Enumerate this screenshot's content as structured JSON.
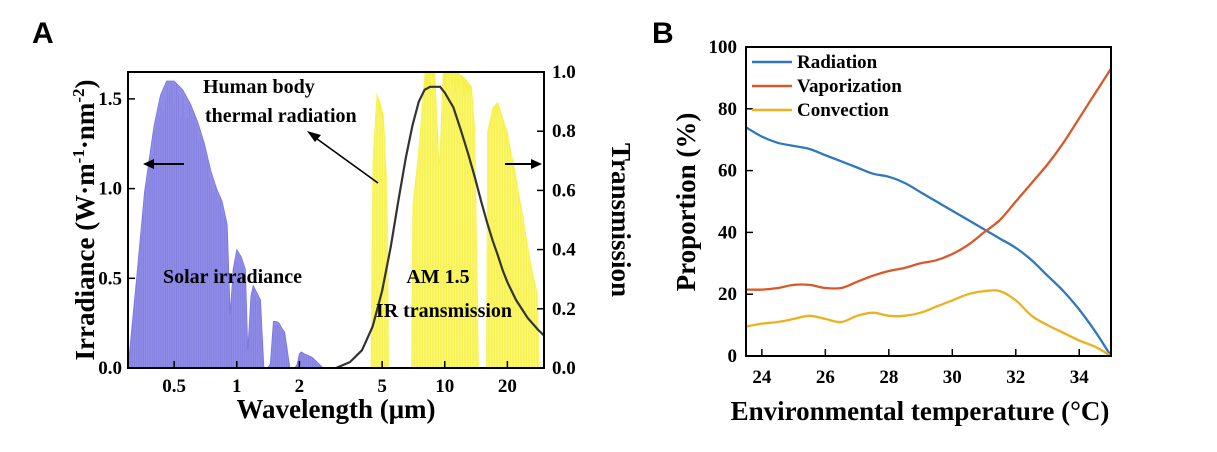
{
  "figure": {
    "panel_a": "A",
    "panel_b": "B"
  },
  "chart_data": [
    {
      "type": "area",
      "panel": "A",
      "xlabel": "Wavelength (μm)",
      "ylabel": "Irradiance (W·m",
      "ylabel_sup1": "-1",
      "ylabel_mid": "·nm",
      "ylabel_sup2": "-2",
      "ylabel_end": ")",
      "y2label": "Transmission",
      "x_scale": "log",
      "xlim": [
        0.3,
        30
      ],
      "ylim": [
        0,
        1.65
      ],
      "y2lim": [
        0,
        1.0
      ],
      "x_ticks": [
        0.5,
        1,
        2,
        5,
        10,
        20
      ],
      "x_tick_labels": [
        "0.5",
        "1",
        "2",
        "5",
        "10",
        "20"
      ],
      "y_ticks": [
        0,
        0.5,
        1.0,
        1.5
      ],
      "y_tick_labels": [
        "0.0",
        "0.5",
        "1.0",
        "1.5"
      ],
      "y2_ticks": [
        0,
        0.2,
        0.4,
        0.6,
        0.8,
        1.0
      ],
      "y2_tick_labels": [
        "0.0",
        "0.2",
        "0.4",
        "0.6",
        "0.8",
        "1.0"
      ],
      "annotations": {
        "human": [
          "Human body",
          "thermal radiation"
        ],
        "solar": "Solar irradiance",
        "am": [
          "AM 1.5",
          "IR transmission"
        ]
      },
      "series": [
        {
          "name": "Solar irradiance",
          "color": "#8f8ce8",
          "x": [
            0.3,
            0.33,
            0.36,
            0.4,
            0.43,
            0.46,
            0.5,
            0.55,
            0.6,
            0.65,
            0.7,
            0.75,
            0.8,
            0.85,
            0.9,
            0.93,
            0.96,
            1.0,
            1.05,
            1.1,
            1.13,
            1.17,
            1.2,
            1.25,
            1.3,
            1.35,
            1.4,
            1.45,
            1.5,
            1.55,
            1.6,
            1.65,
            1.7,
            1.75,
            1.8,
            1.85,
            1.9,
            1.95,
            2.0,
            2.05,
            2.1,
            2.2,
            2.3,
            2.4,
            2.5,
            2.6
          ],
          "values": [
            0.0,
            0.5,
            0.98,
            1.35,
            1.52,
            1.6,
            1.6,
            1.55,
            1.47,
            1.37,
            1.25,
            1.1,
            1.0,
            0.93,
            0.8,
            0.3,
            0.55,
            0.66,
            0.62,
            0.55,
            0.1,
            0.4,
            0.46,
            0.42,
            0.38,
            0.0,
            0.0,
            0.02,
            0.26,
            0.26,
            0.25,
            0.22,
            0.2,
            0.1,
            0.0,
            0.0,
            0.0,
            0.02,
            0.08,
            0.09,
            0.08,
            0.07,
            0.06,
            0.04,
            0.02,
            0.0
          ]
        },
        {
          "name": "AM 1.5 IR transmission",
          "color": "#f7f14e",
          "x": [
            4.4,
            4.5,
            4.7,
            4.9,
            5.1,
            5.3,
            5.4,
            6.9,
            7.0,
            7.5,
            8.0,
            8.5,
            9.0,
            9.4,
            9.8,
            10.5,
            11.5,
            12.5,
            13.5,
            14.0,
            14.6,
            15.8,
            16.0,
            17.0,
            18.0,
            19.0,
            20.0,
            22.0,
            24.0,
            26.0,
            28.0,
            28.5
          ],
          "values": [
            0.0,
            0.7,
            0.93,
            0.9,
            0.85,
            0.6,
            0.0,
            0.0,
            0.55,
            0.75,
            1.0,
            1.0,
            1.0,
            0.7,
            1.0,
            1.0,
            1.0,
            0.98,
            0.95,
            0.8,
            0.0,
            0.0,
            0.8,
            0.88,
            0.9,
            0.85,
            0.8,
            0.65,
            0.5,
            0.35,
            0.25,
            0.0
          ]
        },
        {
          "name": "Human body thermal radiation",
          "color": "#333333",
          "x": [
            3.0,
            3.5,
            4.0,
            4.5,
            5.0,
            5.5,
            6.0,
            6.5,
            7.0,
            7.5,
            8.0,
            8.5,
            9.0,
            9.5,
            10.0,
            11.0,
            12.0,
            13.0,
            14.0,
            15.0,
            16.0,
            17.0,
            18.0,
            19.0,
            20.0,
            22.0,
            25.0,
            28.0,
            30.0
          ],
          "values": [
            0.0,
            0.02,
            0.06,
            0.14,
            0.26,
            0.41,
            0.57,
            0.71,
            0.82,
            0.9,
            0.94,
            0.95,
            0.95,
            0.95,
            0.93,
            0.88,
            0.8,
            0.72,
            0.64,
            0.56,
            0.49,
            0.43,
            0.38,
            0.33,
            0.29,
            0.23,
            0.17,
            0.13,
            0.11
          ]
        }
      ]
    },
    {
      "type": "line",
      "panel": "B",
      "xlabel": "Environmental temperature (°C)",
      "ylabel": "Proportion (%)",
      "xlim": [
        23.5,
        35
      ],
      "ylim": [
        0,
        100
      ],
      "x_ticks": [
        24,
        26,
        28,
        30,
        32,
        34
      ],
      "x_tick_labels": [
        "24",
        "26",
        "28",
        "30",
        "32",
        "34"
      ],
      "y_ticks": [
        0,
        20,
        40,
        60,
        80,
        100
      ],
      "y_tick_labels": [
        "0",
        "20",
        "40",
        "60",
        "80",
        "100"
      ],
      "legend_position": "top-left",
      "x": [
        23.5,
        24.0,
        24.5,
        25.0,
        25.5,
        26.0,
        26.5,
        27.0,
        27.5,
        28.0,
        28.5,
        29.0,
        29.5,
        30.0,
        30.5,
        31.0,
        31.5,
        32.0,
        32.5,
        33.0,
        33.5,
        34.0,
        34.5,
        35.0
      ],
      "series": [
        {
          "name": "Radiation",
          "color": "#2f78bd",
          "values": [
            74,
            71,
            69,
            68,
            67,
            65,
            63,
            61,
            59,
            58,
            56,
            53,
            50,
            47,
            44,
            41,
            38,
            35,
            31,
            26,
            21,
            15,
            8,
            0
          ]
        },
        {
          "name": "Vaporization",
          "color": "#d9582a",
          "values": [
            21.5,
            21.5,
            22,
            23,
            23,
            22,
            22,
            24,
            26,
            27.5,
            28.5,
            30,
            31,
            33,
            36,
            40,
            44,
            50,
            56,
            62,
            69,
            77,
            85,
            93
          ]
        },
        {
          "name": "Convection",
          "color": "#edb120",
          "values": [
            9.5,
            10.5,
            11,
            12,
            13,
            12,
            11,
            13,
            14,
            13,
            13,
            14,
            16,
            18,
            20,
            21,
            21,
            18,
            13,
            10,
            7.5,
            5,
            3,
            0
          ]
        }
      ]
    }
  ]
}
